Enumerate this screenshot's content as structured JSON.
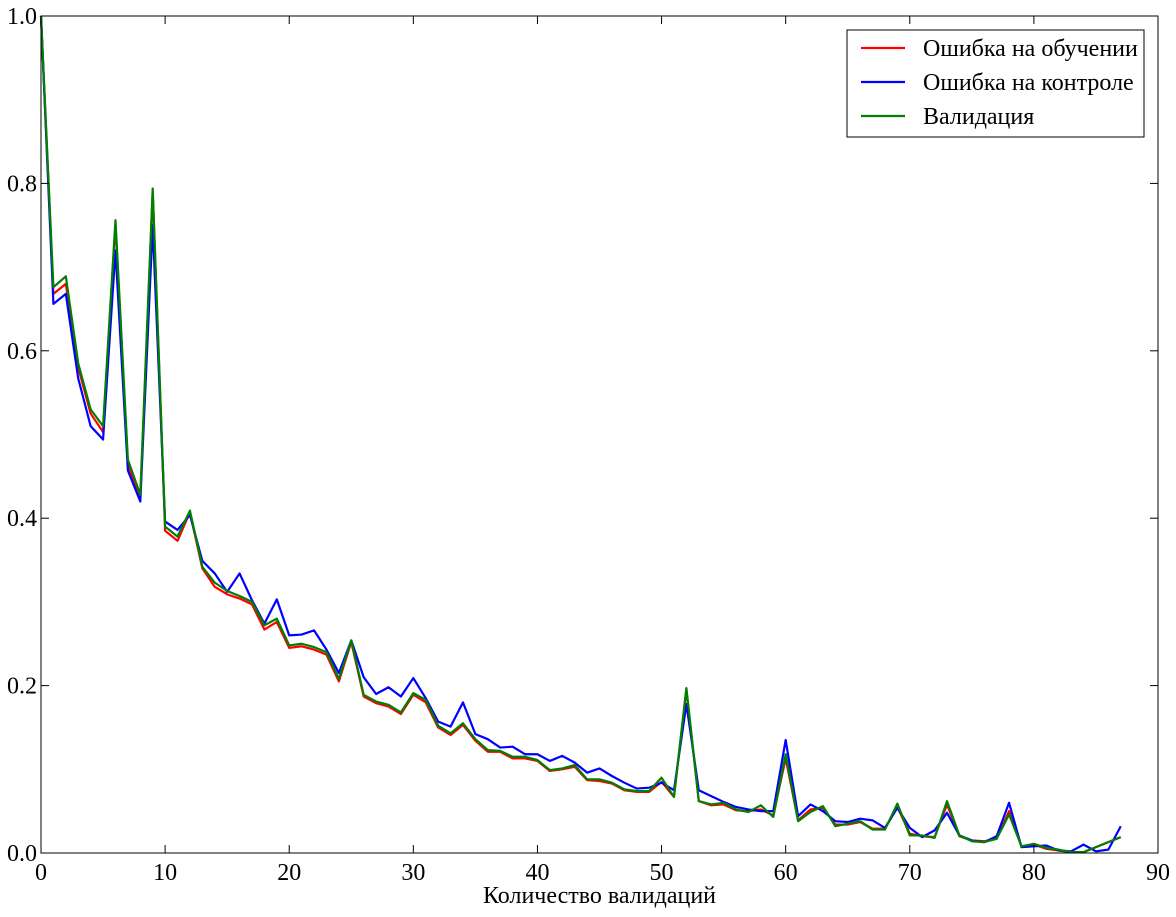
{
  "chart_data": {
    "type": "line",
    "title": "",
    "xlabel": "Количество валидаций",
    "ylabel": "",
    "xlim": [
      0,
      90
    ],
    "ylim": [
      0.0,
      1.0
    ],
    "xticks": [
      0,
      10,
      20,
      30,
      40,
      50,
      60,
      70,
      80,
      90
    ],
    "yticks": [
      0.0,
      0.2,
      0.4,
      0.6,
      0.8,
      1.0
    ],
    "xtick_labels": [
      "0",
      "10",
      "20",
      "30",
      "40",
      "50",
      "60",
      "70",
      "80",
      "90"
    ],
    "ytick_labels": [
      "0.0",
      "0.2",
      "0.4",
      "0.6",
      "0.8",
      "1.0"
    ],
    "grid": false,
    "legend_position": "top-right",
    "x": [
      0,
      1,
      2,
      3,
      4,
      5,
      6,
      7,
      8,
      9,
      10,
      11,
      12,
      13,
      14,
      15,
      16,
      17,
      18,
      19,
      20,
      21,
      22,
      23,
      24,
      25,
      26,
      27,
      28,
      29,
      30,
      31,
      32,
      33,
      34,
      35,
      36,
      37,
      38,
      39,
      40,
      41,
      42,
      43,
      44,
      45,
      46,
      47,
      48,
      49,
      50,
      51,
      52,
      53,
      54,
      55,
      56,
      57,
      58,
      59,
      60,
      61,
      62,
      63,
      64,
      65,
      66,
      67,
      68,
      69,
      70,
      71,
      72,
      73,
      74,
      75,
      76,
      77,
      78,
      79,
      80,
      81,
      82,
      83,
      84,
      85,
      86,
      87
    ],
    "series": [
      {
        "name": "Ошибка на обучении",
        "color": "#ff0000",
        "values": [
          1.0,
          0.668,
          0.68,
          0.58,
          0.525,
          0.503,
          0.752,
          0.463,
          0.422,
          0.79,
          0.385,
          0.373,
          0.407,
          0.34,
          0.318,
          0.309,
          0.304,
          0.297,
          0.267,
          0.276,
          0.245,
          0.247,
          0.243,
          0.237,
          0.205,
          0.252,
          0.187,
          0.179,
          0.175,
          0.166,
          0.189,
          0.18,
          0.15,
          0.141,
          0.153,
          0.134,
          0.121,
          0.121,
          0.113,
          0.113,
          0.11,
          0.098,
          0.1,
          0.103,
          0.087,
          0.086,
          0.083,
          0.075,
          0.073,
          0.073,
          0.085,
          0.067,
          0.195,
          0.062,
          0.057,
          0.058,
          0.051,
          0.05,
          0.052,
          0.045,
          0.113,
          0.039,
          0.052,
          0.054,
          0.034,
          0.034,
          0.037,
          0.029,
          0.029,
          0.055,
          0.023,
          0.02,
          0.019,
          0.058,
          0.02,
          0.015,
          0.014,
          0.017,
          0.05,
          0.008,
          0.01,
          0.005,
          0.003,
          0.001,
          0.001,
          0.007,
          0.013,
          0.019
        ]
      },
      {
        "name": "Ошибка на контроле",
        "color": "#0000ff",
        "values": [
          1.0,
          0.656,
          0.668,
          0.567,
          0.51,
          0.494,
          0.72,
          0.457,
          0.42,
          0.75,
          0.396,
          0.386,
          0.404,
          0.349,
          0.334,
          0.312,
          0.334,
          0.302,
          0.274,
          0.303,
          0.26,
          0.261,
          0.266,
          0.243,
          0.215,
          0.254,
          0.21,
          0.19,
          0.198,
          0.187,
          0.209,
          0.185,
          0.157,
          0.151,
          0.18,
          0.142,
          0.136,
          0.126,
          0.127,
          0.118,
          0.118,
          0.11,
          0.116,
          0.108,
          0.096,
          0.101,
          0.092,
          0.084,
          0.077,
          0.078,
          0.084,
          0.075,
          0.178,
          0.075,
          0.068,
          0.061,
          0.055,
          0.052,
          0.05,
          0.05,
          0.135,
          0.044,
          0.058,
          0.05,
          0.038,
          0.037,
          0.041,
          0.039,
          0.03,
          0.054,
          0.03,
          0.019,
          0.027,
          0.048,
          0.021,
          0.015,
          0.013,
          0.02,
          0.06,
          0.007,
          0.008,
          0.009,
          0.003,
          0.002,
          0.01,
          0.002,
          0.004,
          0.032
        ]
      },
      {
        "name": "Валидация",
        "color": "#008000",
        "values": [
          1.0,
          0.676,
          0.689,
          0.585,
          0.53,
          0.51,
          0.756,
          0.47,
          0.428,
          0.794,
          0.39,
          0.378,
          0.409,
          0.342,
          0.323,
          0.313,
          0.307,
          0.3,
          0.272,
          0.28,
          0.248,
          0.25,
          0.246,
          0.24,
          0.208,
          0.254,
          0.189,
          0.181,
          0.177,
          0.168,
          0.191,
          0.183,
          0.152,
          0.143,
          0.155,
          0.136,
          0.123,
          0.122,
          0.115,
          0.115,
          0.111,
          0.099,
          0.101,
          0.105,
          0.088,
          0.088,
          0.084,
          0.076,
          0.074,
          0.074,
          0.09,
          0.067,
          0.197,
          0.062,
          0.058,
          0.06,
          0.052,
          0.049,
          0.057,
          0.043,
          0.118,
          0.038,
          0.049,
          0.056,
          0.032,
          0.035,
          0.038,
          0.028,
          0.028,
          0.059,
          0.021,
          0.021,
          0.018,
          0.062,
          0.021,
          0.014,
          0.013,
          0.017,
          0.046,
          0.008,
          0.011,
          0.006,
          0.004,
          0.001,
          0.001,
          0.007,
          0.013,
          0.019
        ]
      }
    ]
  }
}
